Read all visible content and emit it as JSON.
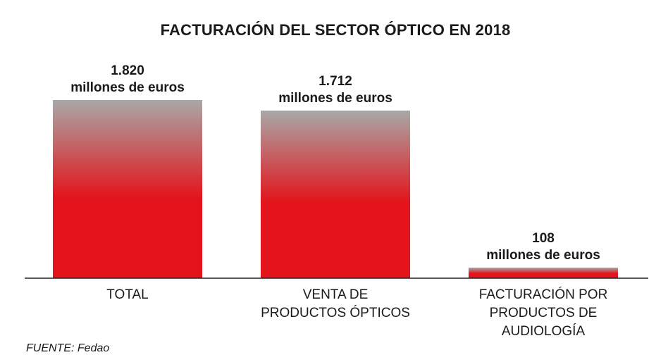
{
  "chart_data": {
    "type": "bar",
    "title": "FACTURACIÓN DEL SECTOR ÓPTICO EN 2018",
    "categories": [
      [
        "TOTAL"
      ],
      [
        "VENTA DE",
        "PRODUCTOS ÓPTICOS"
      ],
      [
        "FACTURACIÓN POR",
        "PRODUCTOS DE",
        "AUDIOLOGÍA"
      ]
    ],
    "values": [
      1820,
      1712,
      108
    ],
    "value_labels": [
      "1.820",
      "1.712",
      "108"
    ],
    "unit_label": "millones de euros",
    "colors": {
      "bar_top": "#a8a8a8",
      "bar_bottom": "#e3141b"
    },
    "xlabel": "",
    "ylabel": "",
    "grid": false
  },
  "source": "FUENTE: Fedao"
}
